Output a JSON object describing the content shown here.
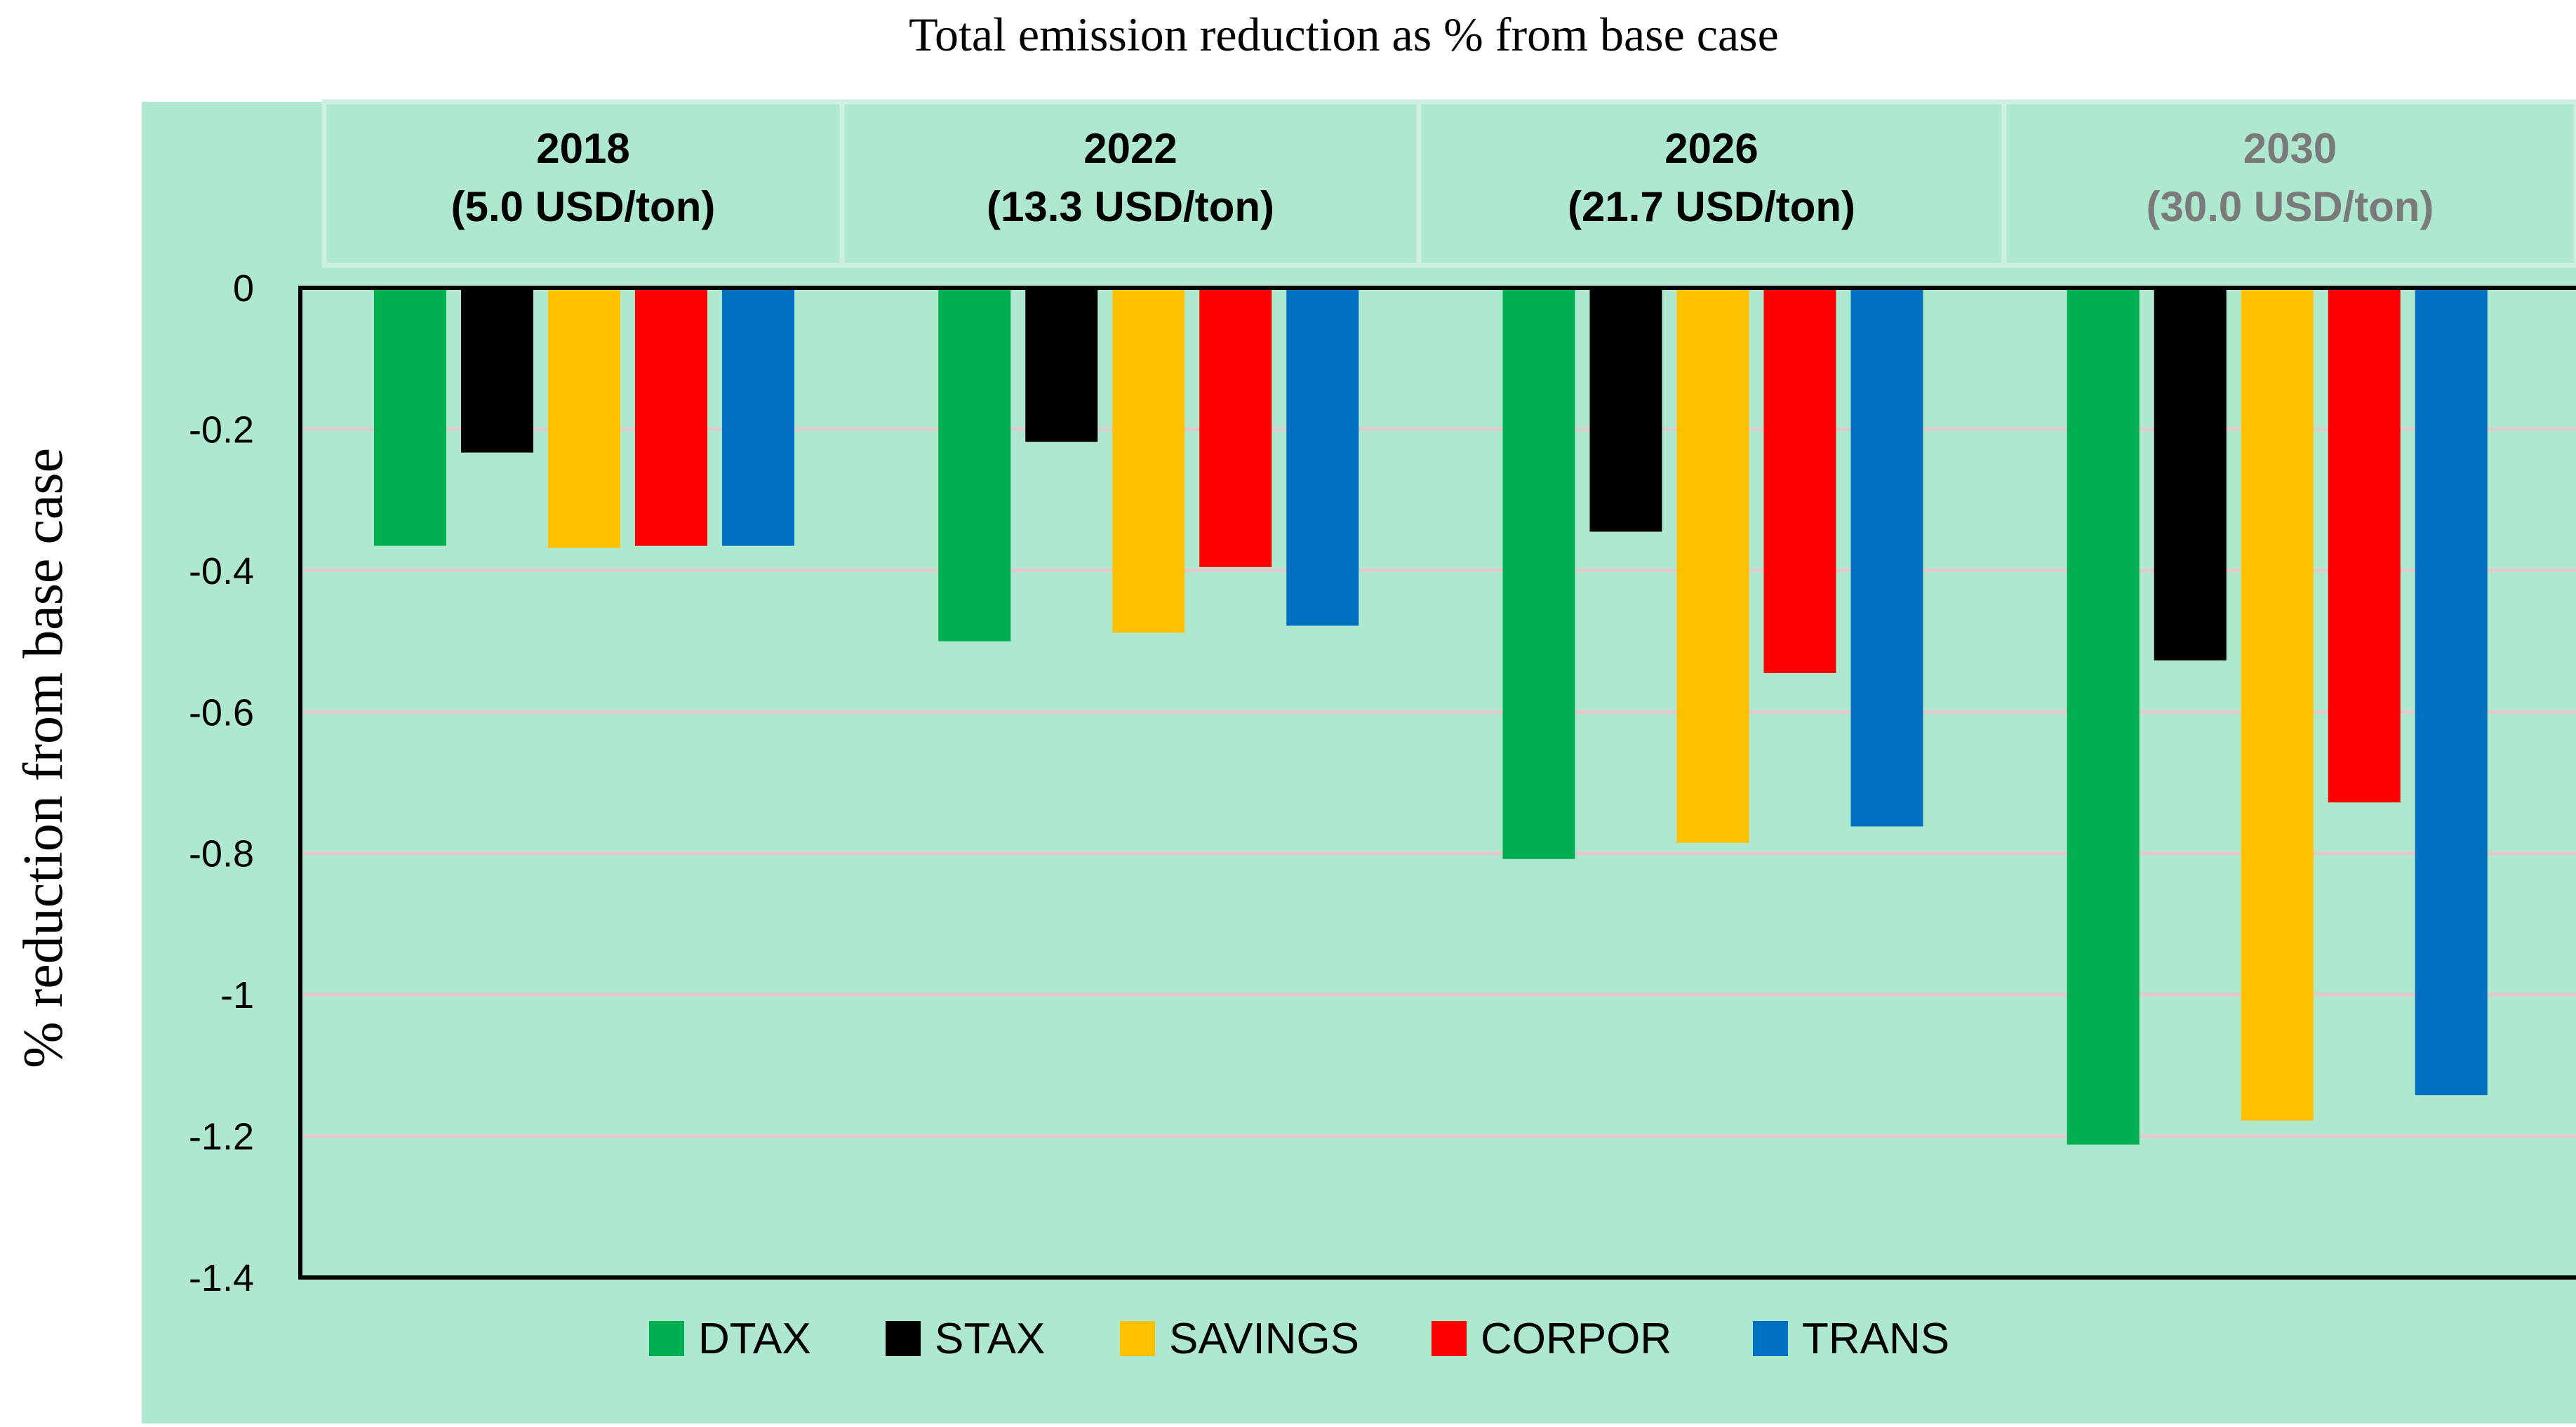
{
  "chart_data": {
    "type": "bar",
    "title": "Total emission reduction as % from base case",
    "ylabel": "% reduction from base case",
    "xlabel": "",
    "ylim": [
      -1.4,
      0
    ],
    "yticks": [
      0,
      -0.2,
      -0.4,
      -0.6,
      -0.8,
      -1,
      -1.2,
      -1.4
    ],
    "ytick_labels": [
      "0",
      "-0.2",
      "-0.4",
      "-0.6",
      "-0.8",
      "-1",
      "-1.2",
      "-1.4"
    ],
    "grid": true,
    "legend_position": "bottom",
    "categories": [
      {
        "year": "2018",
        "price": "(5.0 USD/ton)",
        "muted": false
      },
      {
        "year": "2022",
        "price": "(13.3 USD/ton)",
        "muted": false
      },
      {
        "year": "2026",
        "price": "(21.7 USD/ton)",
        "muted": false
      },
      {
        "year": "2030",
        "price": "(30.0 USD/ton)",
        "muted": true
      }
    ],
    "series": [
      {
        "name": "DTAX",
        "color": "#00B050",
        "values": [
          -0.365,
          -0.5,
          -0.808,
          -1.212
        ]
      },
      {
        "name": "STAX",
        "color": "#000000",
        "values": [
          -0.233,
          -0.218,
          -0.345,
          -0.527
        ]
      },
      {
        "name": "SAVINGS",
        "color": "#FFC000",
        "values": [
          -0.368,
          -0.488,
          -0.785,
          -1.178
        ]
      },
      {
        "name": "CORPOR",
        "color": "#FF0000",
        "values": [
          -0.365,
          -0.395,
          -0.545,
          -0.728
        ]
      },
      {
        "name": "TRANS",
        "color": "#0070C0",
        "values": [
          -0.365,
          -0.478,
          -0.762,
          -1.142
        ]
      }
    ],
    "colors": {
      "plot_background": "#AEE8CF",
      "header_border": "#CFEFE0",
      "gridline": "#E6C8CC",
      "axis": "#000000"
    }
  }
}
